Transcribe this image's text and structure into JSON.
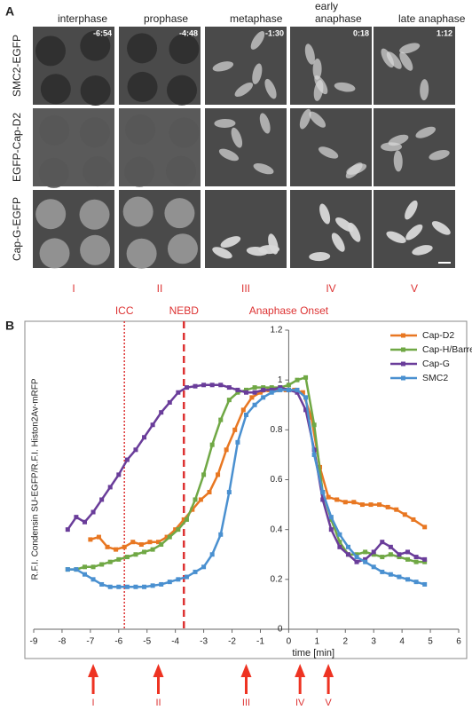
{
  "panel_a": {
    "label": "A",
    "columns": [
      [
        "interphase"
      ],
      [
        "prophase"
      ],
      [
        "metaphase"
      ],
      [
        "early",
        "anaphase"
      ],
      [
        "late anaphase"
      ]
    ],
    "rows": [
      "SMC2-EGFP",
      "EGFP-Cap-D2",
      "Cap-G-EGFP"
    ],
    "timestamps": [
      "-6:54",
      "-4:48",
      "-1:30",
      "0:18",
      "1:12"
    ],
    "stages": [
      "I",
      "II",
      "III",
      "IV",
      "V"
    ]
  },
  "panel_b_label": "B",
  "chart_data": {
    "type": "line",
    "y_label": "R.F.I. Condensin SU-EGFP/R.F.I. Histon2Av-mRFP",
    "x_label": "time [min]",
    "xlim": [
      -9,
      6
    ],
    "xticks": [
      -9,
      -8,
      -7,
      -6,
      -5,
      -4,
      -3,
      -2,
      -1,
      0,
      1,
      2,
      3,
      4,
      5,
      6
    ],
    "ylim": [
      0,
      1.2
    ],
    "yticks": [
      0,
      0.2,
      0.4,
      0.6,
      0.8,
      1,
      1.2
    ],
    "legend": "top-right",
    "annotations": [
      {
        "label": "ICC",
        "x": -5.8,
        "style": "dotted"
      },
      {
        "label": "NEBD",
        "x": -3.7,
        "style": "dashed"
      },
      {
        "label": "Anaphase Onset",
        "x": 0
      }
    ],
    "stage_arrows": [
      {
        "label": "I",
        "x": -6.9
      },
      {
        "label": "II",
        "x": -4.6
      },
      {
        "label": "III",
        "x": -1.5
      },
      {
        "label": "IV",
        "x": 0.4
      },
      {
        "label": "V",
        "x": 1.4
      }
    ],
    "series": [
      {
        "name": "Cap-D2",
        "color": "#e87722",
        "x": [
          -7.0,
          -6.7,
          -6.4,
          -6.1,
          -5.8,
          -5.5,
          -5.2,
          -4.9,
          -4.6,
          -4.3,
          -4.0,
          -3.7,
          -3.4,
          -3.1,
          -2.8,
          -2.5,
          -2.2,
          -1.9,
          -1.6,
          -1.3,
          -1.0,
          -0.7,
          -0.4,
          -0.1,
          0.2,
          0.5,
          0.8,
          1.1,
          1.4,
          1.7,
          2.0,
          2.3,
          2.6,
          2.9,
          3.2,
          3.5,
          3.8,
          4.1,
          4.4,
          4.8
        ],
        "values": [
          0.36,
          0.37,
          0.33,
          0.32,
          0.33,
          0.35,
          0.34,
          0.35,
          0.35,
          0.37,
          0.4,
          0.44,
          0.48,
          0.52,
          0.55,
          0.62,
          0.72,
          0.8,
          0.88,
          0.93,
          0.95,
          0.96,
          0.96,
          0.96,
          0.96,
          0.95,
          0.85,
          0.65,
          0.53,
          0.52,
          0.51,
          0.51,
          0.5,
          0.5,
          0.5,
          0.49,
          0.48,
          0.46,
          0.44,
          0.41
        ]
      },
      {
        "name": "Cap-H/Barren",
        "color": "#70a845",
        "x": [
          -7.8,
          -7.5,
          -7.2,
          -6.9,
          -6.6,
          -6.3,
          -6.0,
          -5.7,
          -5.4,
          -5.1,
          -4.8,
          -4.5,
          -4.2,
          -3.9,
          -3.6,
          -3.3,
          -3.0,
          -2.7,
          -2.4,
          -2.1,
          -1.8,
          -1.5,
          -1.2,
          -0.9,
          -0.6,
          -0.3,
          0,
          0.3,
          0.6,
          0.9,
          1.2,
          1.5,
          1.8,
          2.1,
          2.4,
          2.7,
          3.0,
          3.3,
          3.6,
          3.9,
          4.2,
          4.5,
          4.8
        ],
        "values": [
          0.24,
          0.24,
          0.25,
          0.25,
          0.26,
          0.27,
          0.28,
          0.29,
          0.3,
          0.31,
          0.32,
          0.34,
          0.37,
          0.4,
          0.44,
          0.52,
          0.62,
          0.74,
          0.84,
          0.92,
          0.95,
          0.96,
          0.97,
          0.97,
          0.97,
          0.97,
          0.98,
          1.0,
          1.01,
          0.82,
          0.55,
          0.44,
          0.35,
          0.3,
          0.3,
          0.31,
          0.3,
          0.29,
          0.3,
          0.29,
          0.28,
          0.27,
          0.27
        ]
      },
      {
        "name": "Cap-G",
        "color": "#6a3d9a",
        "x": [
          -7.8,
          -7.5,
          -7.2,
          -6.9,
          -6.6,
          -6.3,
          -6.0,
          -5.7,
          -5.4,
          -5.1,
          -4.8,
          -4.5,
          -4.2,
          -3.9,
          -3.6,
          -3.3,
          -3.0,
          -2.7,
          -2.4,
          -2.1,
          -1.8,
          -1.5,
          -1.2,
          -0.9,
          -0.6,
          -0.3,
          0,
          0.3,
          0.6,
          0.9,
          1.2,
          1.5,
          1.8,
          2.1,
          2.4,
          2.7,
          3.0,
          3.3,
          3.6,
          3.9,
          4.2,
          4.5,
          4.8
        ],
        "values": [
          0.4,
          0.45,
          0.43,
          0.47,
          0.52,
          0.57,
          0.62,
          0.68,
          0.72,
          0.77,
          0.82,
          0.87,
          0.91,
          0.95,
          0.97,
          0.975,
          0.98,
          0.98,
          0.98,
          0.97,
          0.96,
          0.95,
          0.95,
          0.96,
          0.96,
          0.97,
          0.96,
          0.95,
          0.88,
          0.72,
          0.52,
          0.4,
          0.33,
          0.3,
          0.27,
          0.28,
          0.31,
          0.35,
          0.33,
          0.3,
          0.31,
          0.29,
          0.28
        ]
      },
      {
        "name": "SMC2",
        "color": "#4a90d0",
        "x": [
          -7.8,
          -7.5,
          -7.2,
          -6.9,
          -6.6,
          -6.3,
          -6.0,
          -5.7,
          -5.4,
          -5.1,
          -4.8,
          -4.5,
          -4.2,
          -3.9,
          -3.6,
          -3.3,
          -3.0,
          -2.7,
          -2.4,
          -2.1,
          -1.8,
          -1.5,
          -1.2,
          -0.9,
          -0.6,
          -0.3,
          0,
          0.3,
          0.6,
          0.9,
          1.2,
          1.5,
          1.8,
          2.1,
          2.4,
          2.7,
          3.0,
          3.3,
          3.6,
          3.9,
          4.2,
          4.5,
          4.8
        ],
        "values": [
          0.24,
          0.24,
          0.22,
          0.2,
          0.18,
          0.17,
          0.17,
          0.17,
          0.17,
          0.17,
          0.175,
          0.18,
          0.19,
          0.2,
          0.21,
          0.23,
          0.25,
          0.3,
          0.38,
          0.55,
          0.75,
          0.86,
          0.9,
          0.93,
          0.95,
          0.96,
          0.96,
          0.96,
          0.93,
          0.7,
          0.55,
          0.45,
          0.38,
          0.33,
          0.29,
          0.27,
          0.25,
          0.23,
          0.22,
          0.21,
          0.2,
          0.19,
          0.18
        ]
      }
    ]
  }
}
